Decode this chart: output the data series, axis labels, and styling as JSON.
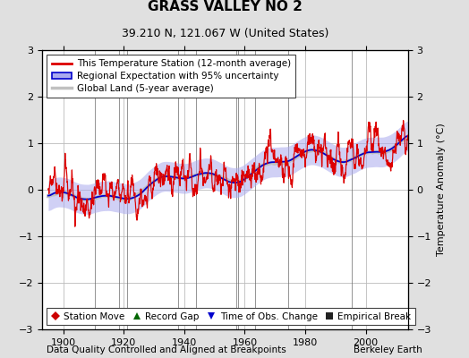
{
  "title": "GRASS VALLEY NO 2",
  "subtitle": "39.210 N, 121.067 W (United States)",
  "ylabel": "Temperature Anomaly (°C)",
  "xlabel_left": "Data Quality Controlled and Aligned at Breakpoints",
  "xlabel_right": "Berkeley Earth",
  "ylim": [
    -3,
    3
  ],
  "xlim": [
    1893,
    2014
  ],
  "yticks": [
    -3,
    -2,
    -1,
    0,
    1,
    2,
    3
  ],
  "xticks": [
    1900,
    1920,
    1940,
    1960,
    1980,
    2000
  ],
  "background_color": "#e0e0e0",
  "plot_bg_color": "#ffffff",
  "grid_color": "#bbbbbb",
  "red_line_color": "#dd0000",
  "blue_line_color": "#0000cc",
  "blue_fill_color": "#aaaaee",
  "gray_line_color": "#c0c0c0",
  "station_move_color": "#cc0000",
  "record_gap_color": "#006600",
  "obs_change_color": "#0000cc",
  "emp_break_color": "#222222",
  "vline_color": "#666666",
  "seed": 42,
  "year_start": 1895,
  "year_end": 2013,
  "station_moves": [
    1963.3
  ],
  "record_gaps": [
    1910.5
  ],
  "obs_changes": [
    1957.2
  ],
  "emp_breaks": [
    1918.5,
    1921.0,
    1938.0,
    1944.0,
    1957.8,
    1974.5,
    1995.5
  ],
  "vlines": [
    1918.5,
    1921.0,
    1938.0,
    1944.0,
    1957.8,
    1974.5,
    1995.5,
    1910.5,
    1957.2,
    1963.3
  ]
}
